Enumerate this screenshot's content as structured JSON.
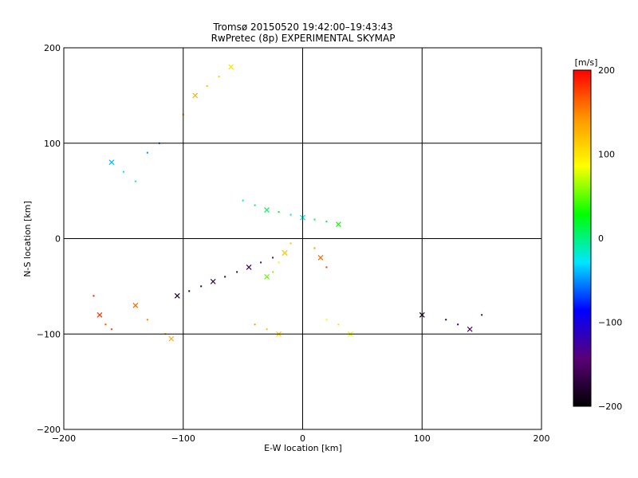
{
  "chart_data": {
    "type": "scatter",
    "title": "Tromsø 20150520 19:42:00–19:43:43",
    "subtitle": "RwPretec (8p) EXPERIMENTAL SKYMAP",
    "xlabel": "E-W location [km]",
    "ylabel": "N-S location [km]",
    "xlim": [
      -200,
      200
    ],
    "ylim": [
      -200,
      200
    ],
    "x_ticks": [
      "−200",
      "−100",
      "0",
      "100",
      "200"
    ],
    "y_ticks": [
      "−200",
      "−100",
      "0",
      "100",
      "200"
    ],
    "grid": true,
    "colorbar": {
      "label": "[m/s]",
      "range": [
        -200,
        200
      ],
      "ticks": [
        "200",
        "100",
        "0",
        "−100",
        "−200"
      ],
      "colors": [
        "#000000",
        "#5a0078",
        "#0000ff",
        "#00e6ff",
        "#00ff00",
        "#ffff00",
        "#ff9600",
        "#ff0000"
      ]
    },
    "markers": [
      "dot",
      "x"
    ],
    "series": [
      {
        "x": [
          -105,
          -95,
          -85,
          -75,
          -65,
          -55,
          -45,
          -35,
          -25,
          -15
        ],
        "y": [
          -60,
          -55,
          -50,
          -45,
          -40,
          -35,
          -30,
          -25,
          -20,
          -15
        ],
        "v": [
          -185,
          -185,
          -180,
          -175,
          -170,
          -165,
          -160,
          -150,
          -140,
          -130
        ]
      },
      {
        "x": [
          -50,
          -40,
          -30,
          -20,
          -10,
          0,
          10,
          20,
          30
        ],
        "y": [
          40,
          35,
          30,
          28,
          25,
          22,
          20,
          18,
          15
        ],
        "v": [
          -10,
          0,
          10,
          20,
          -15,
          -20,
          5,
          15,
          30
        ]
      },
      {
        "x": [
          -175,
          -170,
          -165,
          -160,
          -140,
          -130,
          -115,
          -110
        ],
        "y": [
          -60,
          -80,
          -90,
          -95,
          -70,
          -85,
          -100,
          -105
        ],
        "v": [
          190,
          180,
          170,
          175,
          160,
          150,
          140,
          130
        ]
      },
      {
        "x": [
          -30,
          -25,
          -20,
          -15,
          -10,
          10,
          15,
          20
        ],
        "y": [
          -40,
          -35,
          -25,
          -15,
          -5,
          -10,
          -20,
          -30
        ],
        "v": [
          50,
          60,
          80,
          100,
          120,
          140,
          160,
          180
        ]
      },
      {
        "x": [
          -40,
          -30,
          -20,
          20,
          30,
          40
        ],
        "y": [
          -90,
          -95,
          -100,
          -85,
          -90,
          -100
        ],
        "v": [
          140,
          120,
          110,
          90,
          100,
          80
        ]
      },
      {
        "x": [
          -100,
          -90,
          -80,
          -70,
          -60
        ],
        "y": [
          130,
          150,
          160,
          170,
          180
        ],
        "v": [
          140,
          130,
          120,
          110,
          100
        ]
      },
      {
        "x": [
          100,
          120,
          130,
          140,
          150
        ],
        "y": [
          -80,
          -85,
          -90,
          -95,
          -80
        ],
        "v": [
          -190,
          -180,
          -170,
          -160,
          -150
        ]
      },
      {
        "x": [
          -140,
          -150,
          -160,
          -130,
          -120
        ],
        "y": [
          60,
          70,
          80,
          90,
          100
        ],
        "v": [
          -20,
          -30,
          -40,
          -50,
          -60
        ]
      }
    ]
  }
}
